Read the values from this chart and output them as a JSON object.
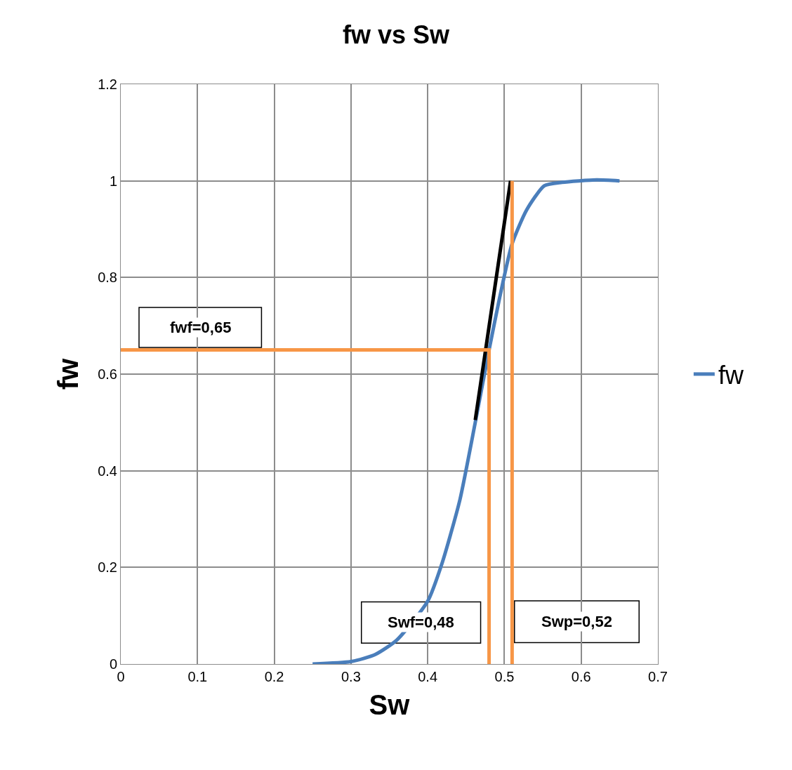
{
  "chart_data": {
    "type": "line",
    "title": "fw vs Sw",
    "xlabel": "Sw",
    "ylabel": "fw",
    "series": [
      {
        "name": "fw",
        "color": "#4a7ebb",
        "x": [
          0.25,
          0.3,
          0.332,
          0.36,
          0.4,
          0.419,
          0.442,
          0.462,
          0.48,
          0.494,
          0.51,
          0.529,
          0.552,
          0.575,
          0.62,
          0.65
        ],
        "values": [
          0,
          0.005,
          0.02,
          0.05,
          0.13,
          0.21,
          0.34,
          0.5,
          0.65,
          0.76,
          0.87,
          0.94,
          0.99,
          0.997,
          1.002,
          1.0
        ]
      },
      {
        "color": "#000000",
        "x": [
          0.462,
          0.508
        ],
        "values": [
          0.505,
          1.0
        ]
      },
      {
        "color": "#f79646",
        "x": [
          0,
          0.48,
          0.48
        ],
        "values": [
          0.65,
          0.65,
          0
        ]
      },
      {
        "color": "#f79646",
        "x": [
          0.51,
          0.51
        ],
        "values": [
          0,
          1.0
        ]
      }
    ],
    "annotations": [
      "fwf=0,65",
      "Swf=0,48",
      "Swp=0,52"
    ],
    "xlim": [
      0,
      0.7
    ],
    "xticks": [
      0,
      0.1,
      0.2,
      0.3,
      0.4,
      0.5,
      0.6,
      0.7
    ],
    "ylim": [
      0,
      1.2
    ],
    "yticks": [
      0,
      0.2,
      0.4,
      0.6,
      0.8,
      1,
      1.2
    ],
    "grid": true,
    "legend": "right",
    "marker": "none",
    "line_style": "solid"
  }
}
